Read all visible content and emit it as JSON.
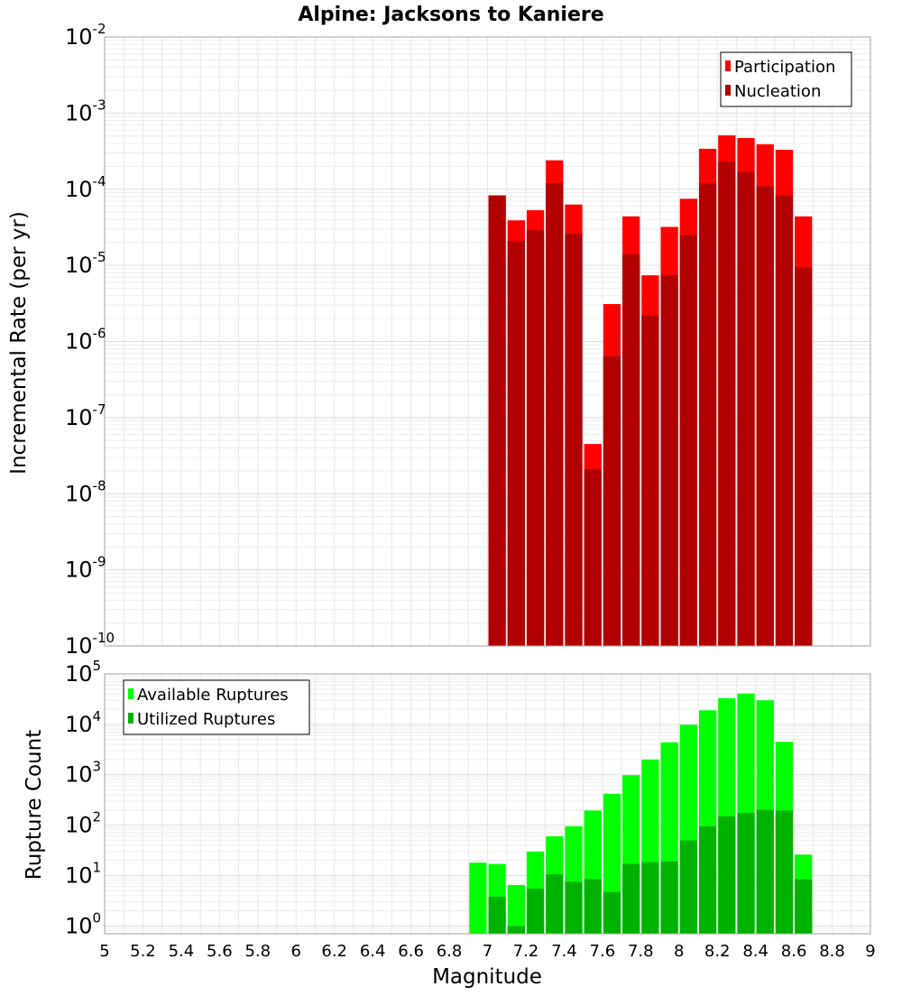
{
  "chart_data": [
    {
      "type": "bar",
      "title": "Alpine: Jacksons to Kaniere",
      "ylabel": "Incremental Rate (per yr)",
      "xlabel": "",
      "y_scale": "log",
      "ylim": [
        1e-10,
        0.01
      ],
      "xlim": [
        5,
        9
      ],
      "yticks": [
        {
          "base": "10",
          "exp": "-10",
          "value": 1e-10
        },
        {
          "base": "10",
          "exp": "-9",
          "value": 1e-09
        },
        {
          "base": "10",
          "exp": "-8",
          "value": 1e-08
        },
        {
          "base": "10",
          "exp": "-7",
          "value": 1e-07
        },
        {
          "base": "10",
          "exp": "-6",
          "value": 1e-06
        },
        {
          "base": "10",
          "exp": "-5",
          "value": 1e-05
        },
        {
          "base": "10",
          "exp": "-4",
          "value": 0.0001
        },
        {
          "base": "10",
          "exp": "-3",
          "value": 0.001
        },
        {
          "base": "10",
          "exp": "-2",
          "value": 0.01
        }
      ],
      "grid": true,
      "legend_position": "top-right",
      "x": [
        7.0,
        7.1,
        7.2,
        7.3,
        7.4,
        7.5,
        7.6,
        7.7,
        7.8,
        7.9,
        8.0,
        8.1,
        8.2,
        8.3,
        8.4,
        8.5,
        8.6
      ],
      "series": [
        {
          "name": "Participation",
          "color": "#ff0000",
          "values": [
            8.3e-05,
            3.9e-05,
            5.3e-05,
            0.00024,
            6.3e-05,
            4.5e-08,
            3.1e-06,
            4.4e-05,
            7.4e-06,
            3.2e-05,
            7.5e-05,
            0.00034,
            0.00051,
            0.00047,
            0.00039,
            0.00033,
            4.4e-05
          ]
        },
        {
          "name": "Nucleation",
          "color": "#b20000",
          "values": [
            8.3e-05,
            2.1e-05,
            2.9e-05,
            0.00012,
            2.6e-05,
            2.1e-08,
            6.4e-07,
            1.4e-05,
            2.2e-06,
            7.5e-06,
            2.5e-05,
            0.00012,
            0.00023,
            0.00017,
            0.00011,
            8.3e-05,
            9.5e-06
          ]
        }
      ]
    },
    {
      "type": "bar",
      "title": "",
      "ylabel": "Rupture Count",
      "xlabel": "Magnitude",
      "y_scale": "log",
      "ylim": [
        0.7,
        100000.0
      ],
      "xlim": [
        5,
        9
      ],
      "yticks": [
        {
          "base": "10",
          "exp": "0",
          "value": 1
        },
        {
          "base": "10",
          "exp": "1",
          "value": 10
        },
        {
          "base": "10",
          "exp": "2",
          "value": 100
        },
        {
          "base": "10",
          "exp": "3",
          "value": 1000
        },
        {
          "base": "10",
          "exp": "4",
          "value": 10000
        },
        {
          "base": "10",
          "exp": "5",
          "value": 100000
        }
      ],
      "xticks": [
        "5",
        "5.2",
        "5.4",
        "5.6",
        "5.8",
        "6",
        "6.2",
        "6.4",
        "6.6",
        "6.8",
        "7",
        "7.2",
        "7.4",
        "7.6",
        "7.8",
        "8",
        "8.2",
        "8.4",
        "8.6",
        "8.8",
        "9"
      ],
      "grid": true,
      "legend_position": "top-left",
      "x": [
        6.9,
        7.0,
        7.1,
        7.2,
        7.3,
        7.4,
        7.5,
        7.6,
        7.7,
        7.8,
        7.9,
        8.0,
        8.1,
        8.2,
        8.3,
        8.4,
        8.5,
        8.6
      ],
      "series": [
        {
          "name": "Available Ruptures",
          "color": "#00ff00",
          "values": [
            18,
            17,
            6.5,
            30,
            60,
            95,
            195,
            420,
            980,
            2000,
            4400,
            9800,
            19000,
            33000,
            41000,
            30000,
            4500,
            26
          ]
        },
        {
          "name": "Utilized Ruptures",
          "color": "#00b200",
          "values": [
            null,
            3.8,
            1,
            5.5,
            10.5,
            7.5,
            8.5,
            4.7,
            17,
            18.5,
            19,
            50,
            95,
            150,
            175,
            200,
            195,
            8.5
          ]
        }
      ]
    }
  ]
}
